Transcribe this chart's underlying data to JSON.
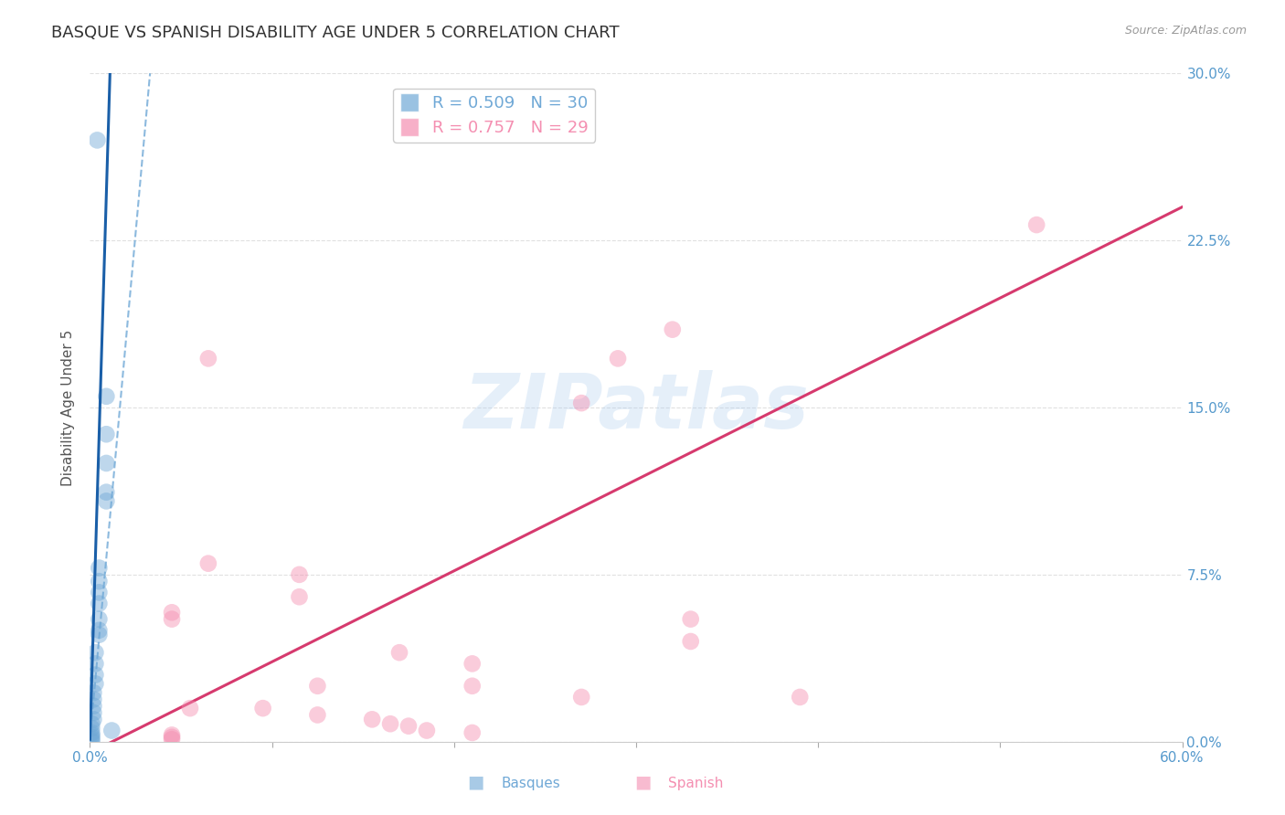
{
  "title": "BASQUE VS SPANISH DISABILITY AGE UNDER 5 CORRELATION CHART",
  "source": "Source: ZipAtlas.com",
  "ylabel": "Disability Age Under 5",
  "watermark": "ZIPatlas",
  "xlim": [
    0.0,
    0.6
  ],
  "ylim": [
    0.0,
    0.3
  ],
  "xticks": [
    0.0,
    0.1,
    0.2,
    0.3,
    0.4,
    0.5,
    0.6
  ],
  "yticks": [
    0.0,
    0.075,
    0.15,
    0.225,
    0.3
  ],
  "xtick_labels": [
    "0.0%",
    "",
    "",
    "",
    "",
    "",
    "60.0%"
  ],
  "ytick_labels_right": [
    "0.0%",
    "7.5%",
    "15.0%",
    "22.5%",
    "30.0%"
  ],
  "legend_blue_r": "R = 0.509",
  "legend_blue_n": "N = 30",
  "legend_pink_r": "R = 0.757",
  "legend_pink_n": "N = 29",
  "blue_color": "#6fa8d6",
  "pink_color": "#f48fb1",
  "blue_scatter": [
    [
      0.004,
      0.27
    ],
    [
      0.009,
      0.155
    ],
    [
      0.009,
      0.138
    ],
    [
      0.009,
      0.125
    ],
    [
      0.009,
      0.112
    ],
    [
      0.009,
      0.108
    ],
    [
      0.005,
      0.078
    ],
    [
      0.005,
      0.072
    ],
    [
      0.005,
      0.067
    ],
    [
      0.005,
      0.062
    ],
    [
      0.005,
      0.055
    ],
    [
      0.005,
      0.05
    ],
    [
      0.005,
      0.048
    ],
    [
      0.003,
      0.04
    ],
    [
      0.003,
      0.035
    ],
    [
      0.003,
      0.03
    ],
    [
      0.003,
      0.026
    ],
    [
      0.002,
      0.022
    ],
    [
      0.002,
      0.019
    ],
    [
      0.002,
      0.016
    ],
    [
      0.002,
      0.013
    ],
    [
      0.002,
      0.01
    ],
    [
      0.001,
      0.008
    ],
    [
      0.001,
      0.006
    ],
    [
      0.001,
      0.004
    ],
    [
      0.001,
      0.003
    ],
    [
      0.001,
      0.002
    ],
    [
      0.001,
      0.001
    ],
    [
      0.001,
      0.0
    ],
    [
      0.012,
      0.005
    ]
  ],
  "pink_scatter": [
    [
      0.52,
      0.232
    ],
    [
      0.32,
      0.185
    ],
    [
      0.29,
      0.172
    ],
    [
      0.065,
      0.172
    ],
    [
      0.27,
      0.152
    ],
    [
      0.065,
      0.08
    ],
    [
      0.115,
      0.075
    ],
    [
      0.115,
      0.065
    ],
    [
      0.045,
      0.058
    ],
    [
      0.045,
      0.055
    ],
    [
      0.33,
      0.055
    ],
    [
      0.33,
      0.045
    ],
    [
      0.17,
      0.04
    ],
    [
      0.21,
      0.035
    ],
    [
      0.21,
      0.025
    ],
    [
      0.125,
      0.025
    ],
    [
      0.27,
      0.02
    ],
    [
      0.39,
      0.02
    ],
    [
      0.055,
      0.015
    ],
    [
      0.095,
      0.015
    ],
    [
      0.125,
      0.012
    ],
    [
      0.155,
      0.01
    ],
    [
      0.165,
      0.008
    ],
    [
      0.175,
      0.007
    ],
    [
      0.185,
      0.005
    ],
    [
      0.21,
      0.004
    ],
    [
      0.045,
      0.003
    ],
    [
      0.045,
      0.002
    ],
    [
      0.045,
      0.001
    ]
  ],
  "blue_solid_trend_x": [
    0.0,
    0.011
  ],
  "blue_solid_trend_y": [
    0.001,
    0.3
  ],
  "blue_dashed_trend_x": [
    0.0,
    0.033
  ],
  "blue_dashed_trend_y": [
    0.001,
    0.3
  ],
  "pink_trend_x": [
    0.0,
    0.6
  ],
  "pink_trend_y": [
    -0.005,
    0.24
  ],
  "background_color": "#ffffff",
  "grid_color": "#e0e0e0",
  "title_fontsize": 13,
  "axis_label_fontsize": 11,
  "tick_fontsize": 11,
  "legend_fontsize": 13,
  "scatter_size": 180
}
